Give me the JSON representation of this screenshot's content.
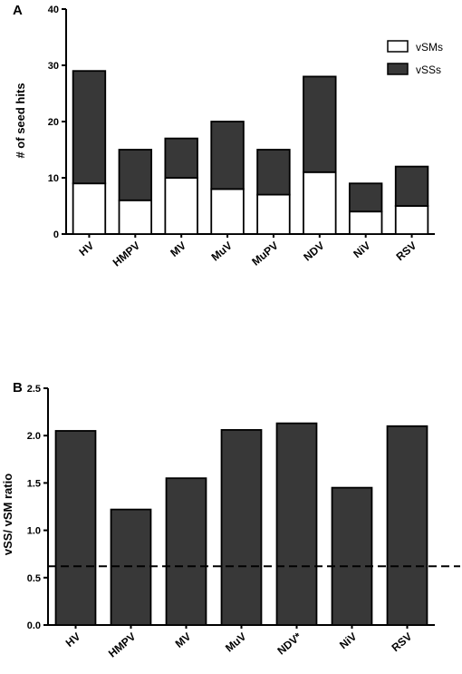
{
  "colors": {
    "dark": "#383838",
    "light": "#ffffff",
    "stroke": "#000000"
  },
  "chart_data": [
    {
      "panel": "A",
      "type": "bar",
      "stacked": true,
      "ylabel": "# of seed hits",
      "ylim": [
        0,
        40
      ],
      "yticks": [
        "0",
        "10",
        "20",
        "30",
        "40"
      ],
      "categories": [
        "HV",
        "HMPV",
        "MV",
        "MuV",
        "MuPV",
        "NDV",
        "NiV",
        "RSV"
      ],
      "series": [
        {
          "name": "vSMs",
          "color": "#ffffff",
          "values": [
            9,
            6,
            10,
            8,
            7,
            11,
            4,
            5
          ]
        },
        {
          "name": "vSSs",
          "color": "#383838",
          "values": [
            20,
            9,
            7,
            12,
            8,
            17,
            5,
            7
          ]
        }
      ],
      "legend": {
        "position": "top-right"
      }
    },
    {
      "panel": "B",
      "type": "bar",
      "ylabel": "vSS/ vSM ratio",
      "ylim": [
        0,
        2.5
      ],
      "yticks": [
        "0.0",
        "0.5",
        "1.0",
        "1.5",
        "2.0",
        "2.5"
      ],
      "categories": [
        "HV",
        "HMPV",
        "MV",
        "MuV",
        "NDV*",
        "NiV",
        "RSV"
      ],
      "values": [
        2.05,
        1.22,
        1.55,
        2.06,
        2.13,
        1.45,
        2.1
      ],
      "reference_line": {
        "y": 0.62,
        "style": "dashed"
      }
    }
  ]
}
